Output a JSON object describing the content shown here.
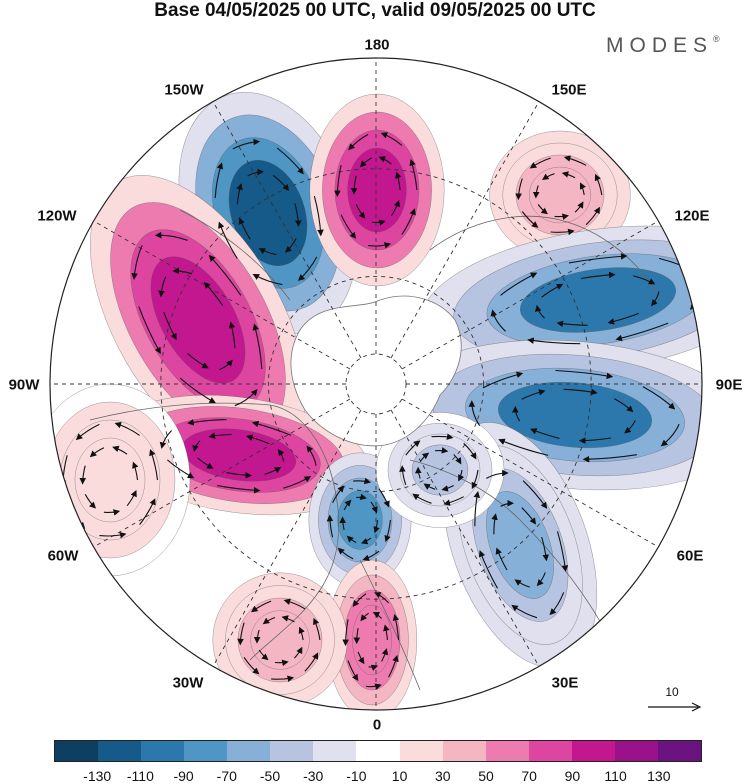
{
  "title": "Base 04/05/2025 00 UTC, valid 09/05/2025 00 UTC",
  "brand": "MODES",
  "brand_mark": "®",
  "longitude_labels": {
    "top": "180",
    "bottom": "0",
    "left": "90W",
    "right": "90E",
    "upper_left_1": "150W",
    "upper_left_2": "120W",
    "upper_right_1": "150E",
    "upper_right_2": "120E",
    "lower_left_1": "60W",
    "lower_left_2": "30W",
    "lower_right_1": "60E",
    "lower_right_2": "30E"
  },
  "reference_vector": {
    "label": "10"
  },
  "colorbar": {
    "colors": [
      "#0d3f63",
      "#165a8a",
      "#2c78ad",
      "#4f96c4",
      "#86b0d8",
      "#b6c4e2",
      "#e0e0ee",
      "#ffffff",
      "#fbdcdc",
      "#f5b6c4",
      "#ee7bb0",
      "#dd45a0",
      "#c2178f",
      "#99128a",
      "#6b1481"
    ],
    "tick_labels": [
      "-130",
      "-110",
      "-90",
      "-70",
      "-50",
      "-30",
      "-10",
      "10",
      "30",
      "50",
      "70",
      "90",
      "110",
      "130"
    ]
  },
  "anomaly_centers": [
    {
      "sign": "negative",
      "level": -110
    },
    {
      "sign": "positive",
      "level": 110
    },
    {
      "sign": "positive",
      "level": 50
    },
    {
      "sign": "negative",
      "level": -90
    },
    {
      "sign": "positive",
      "level": 110
    },
    {
      "sign": "negative",
      "level": -90
    },
    {
      "sign": "positive",
      "level": 110
    },
    {
      "sign": "negative",
      "level": -70
    },
    {
      "sign": "positive",
      "level": 70
    },
    {
      "sign": "negative",
      "level": -50
    },
    {
      "sign": "positive",
      "level": 50
    },
    {
      "sign": "negative",
      "level": -30
    },
    {
      "sign": "positive",
      "level": 30
    }
  ]
}
